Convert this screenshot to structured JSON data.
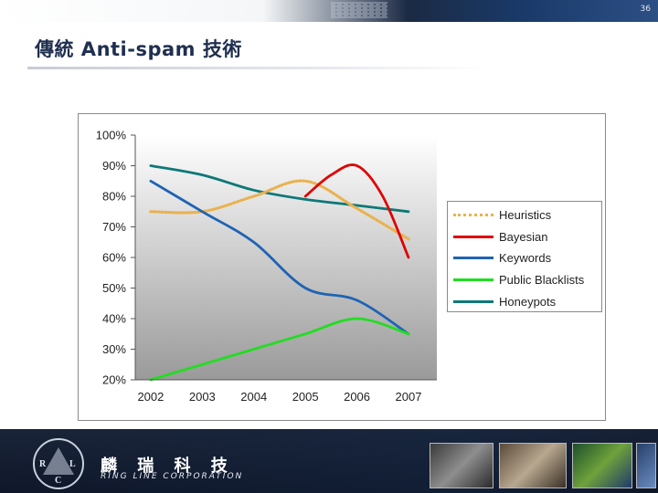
{
  "slide": {
    "number": "36",
    "title": "傳統 Anti-spam 技術"
  },
  "footer": {
    "company_cn": "麟 瑞 科 技",
    "company_en": "RING LINE CORPORATION",
    "logo_letters": [
      "R",
      "L",
      "C"
    ]
  },
  "colors": {
    "heuristics": "#e9b24f",
    "bayesian": "#e00000",
    "keywords": "#1e63b4",
    "public_blacklists": "#22dd22",
    "honeypots": "#0e7878"
  },
  "chart_data": {
    "type": "line",
    "title": "",
    "xlabel": "",
    "ylabel": "",
    "categories": [
      "2002",
      "2003",
      "2004",
      "2005",
      "2006",
      "2007"
    ],
    "x": [
      2002,
      2003,
      2004,
      2005,
      2006,
      2007
    ],
    "ylim": [
      20,
      100
    ],
    "y_ticks": [
      "20%",
      "30%",
      "40%",
      "50%",
      "60%",
      "70%",
      "80%",
      "90%",
      "100%"
    ],
    "legend_position": "right",
    "series": [
      {
        "name": "Heuristics",
        "style": "dotted",
        "color": "#e9b24f",
        "points": [
          [
            2002,
            75
          ],
          [
            2003,
            75
          ],
          [
            2004,
            80
          ],
          [
            2005,
            85
          ],
          [
            2006,
            76
          ],
          [
            2007,
            66
          ]
        ]
      },
      {
        "name": "Bayesian",
        "style": "solid",
        "color": "#e00000",
        "points": [
          [
            2005,
            80
          ],
          [
            2005.5,
            87
          ],
          [
            2006,
            90
          ],
          [
            2006.5,
            80
          ],
          [
            2007,
            60
          ]
        ]
      },
      {
        "name": "Keywords",
        "style": "solid",
        "color": "#1e63b4",
        "points": [
          [
            2002,
            85
          ],
          [
            2003,
            75
          ],
          [
            2004,
            65
          ],
          [
            2005,
            50
          ],
          [
            2006,
            46
          ],
          [
            2007,
            35
          ]
        ]
      },
      {
        "name": "Public Blacklists",
        "style": "solid",
        "color": "#22dd22",
        "points": [
          [
            2002,
            20
          ],
          [
            2003,
            25
          ],
          [
            2004,
            30
          ],
          [
            2005,
            35
          ],
          [
            2006,
            40
          ],
          [
            2007,
            35
          ]
        ]
      },
      {
        "name": "Honeypots",
        "style": "solid",
        "color": "#0e7878",
        "points": [
          [
            2002,
            90
          ],
          [
            2003,
            87
          ],
          [
            2004,
            82
          ],
          [
            2005,
            79
          ],
          [
            2006,
            77
          ],
          [
            2007,
            75
          ]
        ]
      }
    ]
  }
}
